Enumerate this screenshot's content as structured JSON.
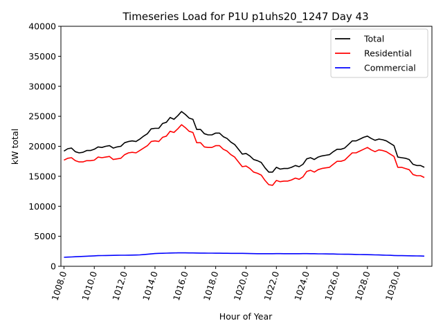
{
  "chart_data": {
    "type": "line",
    "title": "Timeseries Load for P1U p1uhs20_1247  Day 43",
    "xlabel": "Hour of Year",
    "ylabel": "kW total",
    "xlim": [
      1007.8,
      1032.25
    ],
    "ylim": [
      0,
      40000
    ],
    "x_ticks": [
      1008,
      1010,
      1012,
      1014,
      1016,
      1018,
      1020,
      1022,
      1024,
      1026,
      1028,
      1030
    ],
    "x_tick_labels": [
      "1008.0",
      "1010.0",
      "1012.0",
      "1014.0",
      "1016.0",
      "1018.0",
      "1020.0",
      "1022.0",
      "1024.0",
      "1026.0",
      "1028.0",
      "1030.0"
    ],
    "y_ticks": [
      0,
      5000,
      10000,
      15000,
      20000,
      25000,
      30000,
      35000,
      40000
    ],
    "y_tick_labels": [
      "0",
      "5000",
      "10000",
      "15000",
      "20000",
      "25000",
      "30000",
      "35000",
      "40000"
    ],
    "legend_position": "top-right",
    "x": [
      1008.0,
      1008.25,
      1008.5,
      1008.75,
      1009.0,
      1009.25,
      1009.5,
      1009.75,
      1010.0,
      1010.25,
      1010.5,
      1010.75,
      1011.0,
      1011.25,
      1011.5,
      1011.75,
      1012.0,
      1012.25,
      1012.5,
      1012.75,
      1013.0,
      1013.25,
      1013.5,
      1013.75,
      1014.0,
      1014.25,
      1014.5,
      1014.75,
      1015.0,
      1015.25,
      1015.5,
      1015.75,
      1016.0,
      1016.25,
      1016.5,
      1016.75,
      1017.0,
      1017.25,
      1017.5,
      1017.75,
      1018.0,
      1018.25,
      1018.5,
      1018.75,
      1019.0,
      1019.25,
      1019.5,
      1019.75,
      1020.0,
      1020.25,
      1020.5,
      1020.75,
      1021.0,
      1021.25,
      1021.5,
      1021.75,
      1022.0,
      1022.25,
      1022.5,
      1022.75,
      1023.0,
      1023.25,
      1023.5,
      1023.75,
      1024.0,
      1024.25,
      1024.5,
      1024.75,
      1025.0,
      1025.25,
      1025.5,
      1025.75,
      1026.0,
      1026.25,
      1026.5,
      1026.75,
      1027.0,
      1027.25,
      1027.5,
      1027.75,
      1028.0,
      1028.25,
      1028.5,
      1028.75,
      1029.0,
      1029.25,
      1029.5,
      1029.75,
      1030.0,
      1030.25,
      1030.5,
      1030.75,
      1031.0,
      1031.25,
      1031.5,
      1031.75
    ],
    "series": [
      {
        "name": "Total",
        "color": "#000000",
        "values": [
          19200,
          19600,
          19700,
          19100,
          18900,
          19000,
          19300,
          19300,
          19500,
          19900,
          19800,
          20000,
          20100,
          19700,
          19900,
          20000,
          20600,
          20800,
          20900,
          20800,
          21200,
          21700,
          22100,
          22900,
          23000,
          23000,
          23800,
          24000,
          24800,
          24500,
          25100,
          25800,
          25300,
          24700,
          24500,
          22800,
          22800,
          22100,
          21900,
          21900,
          22200,
          22200,
          21600,
          21300,
          20700,
          20300,
          19500,
          18700,
          18800,
          18400,
          17800,
          17600,
          17300,
          16400,
          15700,
          15700,
          16500,
          16200,
          16300,
          16300,
          16500,
          16800,
          16600,
          17000,
          17900,
          18100,
          17800,
          18200,
          18400,
          18500,
          18600,
          19100,
          19500,
          19500,
          19700,
          20300,
          20900,
          20900,
          21200,
          21500,
          21700,
          21300,
          21000,
          21200,
          21100,
          20900,
          20500,
          20100,
          18200,
          18100,
          18000,
          17800,
          17000,
          16800,
          16800,
          16500
        ]
      },
      {
        "name": "Residential",
        "color": "#ff0000",
        "values": [
          17700,
          18000,
          18100,
          17600,
          17400,
          17400,
          17600,
          17600,
          17700,
          18200,
          18100,
          18200,
          18300,
          17800,
          17900,
          18000,
          18600,
          18900,
          19000,
          18900,
          19300,
          19700,
          20100,
          20800,
          20900,
          20800,
          21500,
          21700,
          22500,
          22300,
          22900,
          23600,
          23100,
          22500,
          22300,
          20600,
          20600,
          19900,
          19800,
          19800,
          20100,
          20100,
          19500,
          19200,
          18600,
          18200,
          17400,
          16600,
          16700,
          16300,
          15700,
          15500,
          15200,
          14300,
          13600,
          13500,
          14300,
          14100,
          14200,
          14200,
          14400,
          14700,
          14500,
          14900,
          15800,
          16000,
          15700,
          16100,
          16300,
          16400,
          16500,
          17000,
          17500,
          17500,
          17700,
          18300,
          18900,
          18900,
          19200,
          19500,
          19800,
          19400,
          19100,
          19400,
          19300,
          19100,
          18700,
          18300,
          16500,
          16500,
          16300,
          16100,
          15300,
          15100,
          15100,
          14800
        ]
      },
      {
        "name": "Commercial",
        "color": "#0000ff",
        "values": [
          1500,
          1530,
          1560,
          1590,
          1620,
          1650,
          1680,
          1710,
          1740,
          1770,
          1790,
          1800,
          1810,
          1820,
          1830,
          1840,
          1850,
          1860,
          1870,
          1880,
          1900,
          1950,
          2000,
          2060,
          2120,
          2150,
          2170,
          2190,
          2210,
          2230,
          2240,
          2240,
          2240,
          2230,
          2220,
          2210,
          2200,
          2200,
          2190,
          2190,
          2180,
          2180,
          2170,
          2170,
          2160,
          2160,
          2150,
          2150,
          2140,
          2120,
          2110,
          2100,
          2100,
          2100,
          2100,
          2100,
          2110,
          2110,
          2100,
          2100,
          2100,
          2100,
          2100,
          2110,
          2110,
          2100,
          2100,
          2080,
          2070,
          2060,
          2050,
          2050,
          2030,
          2020,
          2010,
          2000,
          1990,
          1970,
          1960,
          1950,
          1940,
          1920,
          1900,
          1890,
          1870,
          1850,
          1830,
          1800,
          1780,
          1770,
          1760,
          1750,
          1740,
          1730,
          1720,
          1700
        ]
      }
    ]
  }
}
